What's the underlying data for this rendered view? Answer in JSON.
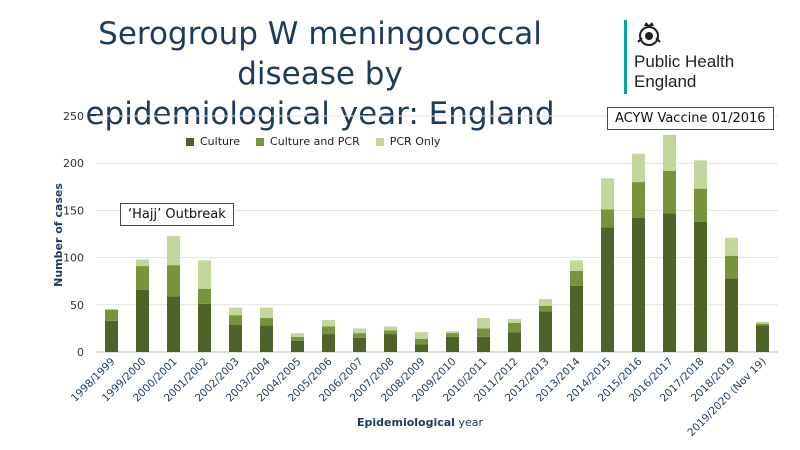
{
  "title_line1": "Serogroup W meningococcal disease by",
  "title_line2": "epidemiological year: England",
  "logo": {
    "line1": "Public Health",
    "line2": "England",
    "icon": "royal-crest-icon"
  },
  "annotations": {
    "hajj": "‘Hajj’ Outbreak",
    "vaccine": "ACYW Vaccine 01/2016"
  },
  "colors": {
    "culture": "#4f6228",
    "culture_pcr": "#77933c",
    "pcr_only": "#c3d69b",
    "title": "#1f3b5c",
    "brand_bar": "#00a7a2"
  },
  "chart_data": {
    "type": "bar",
    "stacked": true,
    "title": "",
    "xlabel_bold": "Epidemiological",
    "xlabel_rest": "year",
    "ylabel": "Number of cases",
    "ylim": [
      0,
      250
    ],
    "yticks": [
      0,
      50,
      100,
      150,
      200,
      250
    ],
    "grid": true,
    "legend_position": "top-left",
    "categories": [
      "1998/1999",
      "1999/2000",
      "2000/2001",
      "2001/2002",
      "2002/2003",
      "2003/2004",
      "2004/2005",
      "2005/2006",
      "2006/2007",
      "2007/2008",
      "2008/2009",
      "2009/2010",
      "2010/2011",
      "2011/2012",
      "2012/2013",
      "2013/2014",
      "2014/2015",
      "2015/2016",
      "2016/2017",
      "2017/2018",
      "2018/2019",
      "2019/2020 (Nov 19)"
    ],
    "series": [
      {
        "name": "Culture",
        "values": [
          33,
          66,
          59,
          51,
          29,
          28,
          12,
          19,
          15,
          19,
          8,
          16,
          16,
          21,
          43,
          70,
          132,
          142,
          147,
          138,
          78,
          28
        ]
      },
      {
        "name": "Culture and PCR",
        "values": [
          12,
          25,
          33,
          16,
          10,
          8,
          4,
          8,
          5,
          4,
          6,
          4,
          9,
          10,
          6,
          16,
          19,
          38,
          45,
          35,
          24,
          2
        ]
      },
      {
        "name": "PCR Only",
        "values": [
          0,
          7,
          31,
          30,
          8,
          11,
          4,
          7,
          5,
          4,
          7,
          2,
          11,
          4,
          7,
          11,
          33,
          30,
          38,
          30,
          19,
          2
        ]
      }
    ]
  }
}
